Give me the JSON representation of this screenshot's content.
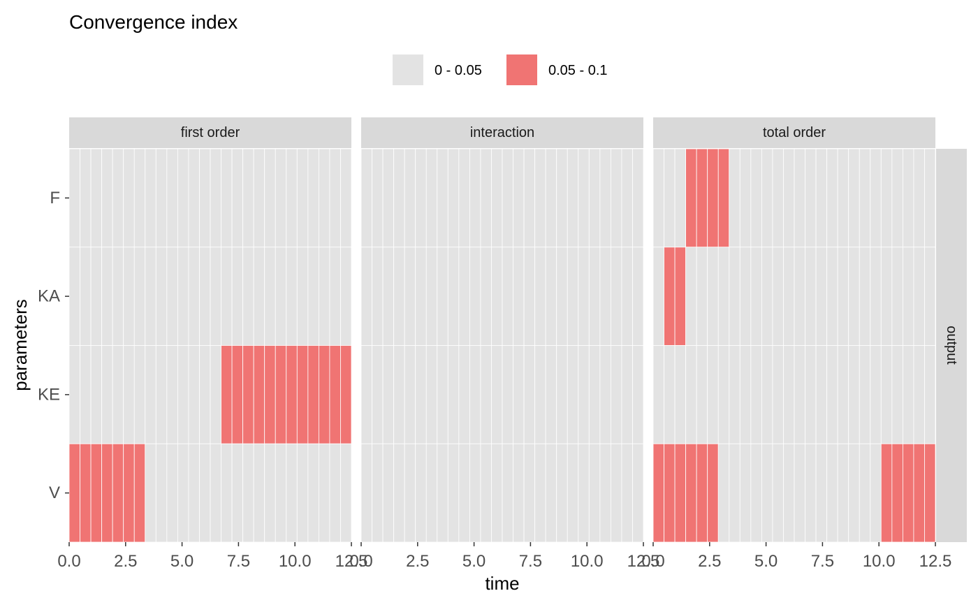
{
  "chart_data": {
    "type": "heatmap",
    "title": "Convergence index",
    "xlabel": "time",
    "ylabel": "parameters",
    "facet_right_label": "output",
    "legend": {
      "placement": "top",
      "entries": [
        {
          "label": "0 - 0.05",
          "color": "#e3e3e3"
        },
        {
          "label": "0.05 - 0.1",
          "color": "#f07473"
        }
      ]
    },
    "colors": {
      "panel_bg": "#ebebeb",
      "strip_bg": "#d9d9d9",
      "low": "#e3e3e3",
      "high": "#f07473",
      "tick_text": "#4d4d4d"
    },
    "xlim": [
      0,
      12.5
    ],
    "x_ticks": [
      "0.0",
      "2.5",
      "5.0",
      "7.5",
      "10.0",
      "12.5"
    ],
    "x": [
      0.0,
      0.5,
      1.0,
      1.5,
      2.0,
      2.5,
      3.0,
      3.5,
      4.0,
      4.5,
      5.0,
      5.5,
      6.0,
      6.5,
      7.0,
      7.5,
      8.0,
      8.5,
      9.0,
      9.5,
      10.0,
      10.5,
      11.0,
      11.5,
      12.0,
      12.5
    ],
    "parameters": [
      "F",
      "KA",
      "KE",
      "V"
    ],
    "panels": [
      {
        "label": "first order",
        "rows": {
          "F": [
            0,
            0,
            0,
            0,
            0,
            0,
            0,
            0,
            0,
            0,
            0,
            0,
            0,
            0,
            0,
            0,
            0,
            0,
            0,
            0,
            0,
            0,
            0,
            0,
            0,
            0
          ],
          "KA": [
            0,
            0,
            0,
            0,
            0,
            0,
            0,
            0,
            0,
            0,
            0,
            0,
            0,
            0,
            0,
            0,
            0,
            0,
            0,
            0,
            0,
            0,
            0,
            0,
            0,
            0
          ],
          "KE": [
            0,
            0,
            0,
            0,
            0,
            0,
            0,
            0,
            0,
            0,
            0,
            0,
            0,
            0,
            1,
            1,
            1,
            1,
            1,
            1,
            1,
            1,
            1,
            1,
            1,
            1
          ],
          "V": [
            1,
            1,
            1,
            1,
            1,
            1,
            1,
            0,
            0,
            0,
            0,
            0,
            0,
            0,
            0,
            0,
            0,
            0,
            0,
            0,
            0,
            0,
            0,
            0,
            0,
            0
          ]
        }
      },
      {
        "label": "interaction",
        "rows": {
          "F": [
            0,
            0,
            0,
            0,
            0,
            0,
            0,
            0,
            0,
            0,
            0,
            0,
            0,
            0,
            0,
            0,
            0,
            0,
            0,
            0,
            0,
            0,
            0,
            0,
            0,
            0
          ],
          "KA": [
            0,
            0,
            0,
            0,
            0,
            0,
            0,
            0,
            0,
            0,
            0,
            0,
            0,
            0,
            0,
            0,
            0,
            0,
            0,
            0,
            0,
            0,
            0,
            0,
            0,
            0
          ],
          "KE": [
            0,
            0,
            0,
            0,
            0,
            0,
            0,
            0,
            0,
            0,
            0,
            0,
            0,
            0,
            0,
            0,
            0,
            0,
            0,
            0,
            0,
            0,
            0,
            0,
            0,
            0
          ],
          "V": [
            0,
            0,
            0,
            0,
            0,
            0,
            0,
            0,
            0,
            0,
            0,
            0,
            0,
            0,
            0,
            0,
            0,
            0,
            0,
            0,
            0,
            0,
            0,
            0,
            0,
            0
          ]
        }
      },
      {
        "label": "total order",
        "rows": {
          "F": [
            0,
            0,
            0,
            1,
            1,
            1,
            1,
            0,
            0,
            0,
            0,
            0,
            0,
            0,
            0,
            0,
            0,
            0,
            0,
            0,
            0,
            0,
            0,
            0,
            0,
            0
          ],
          "KA": [
            0,
            1,
            1,
            0,
            0,
            0,
            0,
            0,
            0,
            0,
            0,
            0,
            0,
            0,
            0,
            0,
            0,
            0,
            0,
            0,
            0,
            0,
            0,
            0,
            0,
            0
          ],
          "KE": [
            0,
            0,
            0,
            0,
            0,
            0,
            0,
            0,
            0,
            0,
            0,
            0,
            0,
            0,
            0,
            0,
            0,
            0,
            0,
            0,
            0,
            0,
            0,
            0,
            0,
            0
          ],
          "V": [
            1,
            1,
            1,
            1,
            1,
            1,
            0,
            0,
            0,
            0,
            0,
            0,
            0,
            0,
            0,
            0,
            0,
            0,
            0,
            0,
            0,
            1,
            1,
            1,
            1,
            1
          ]
        }
      }
    ]
  }
}
